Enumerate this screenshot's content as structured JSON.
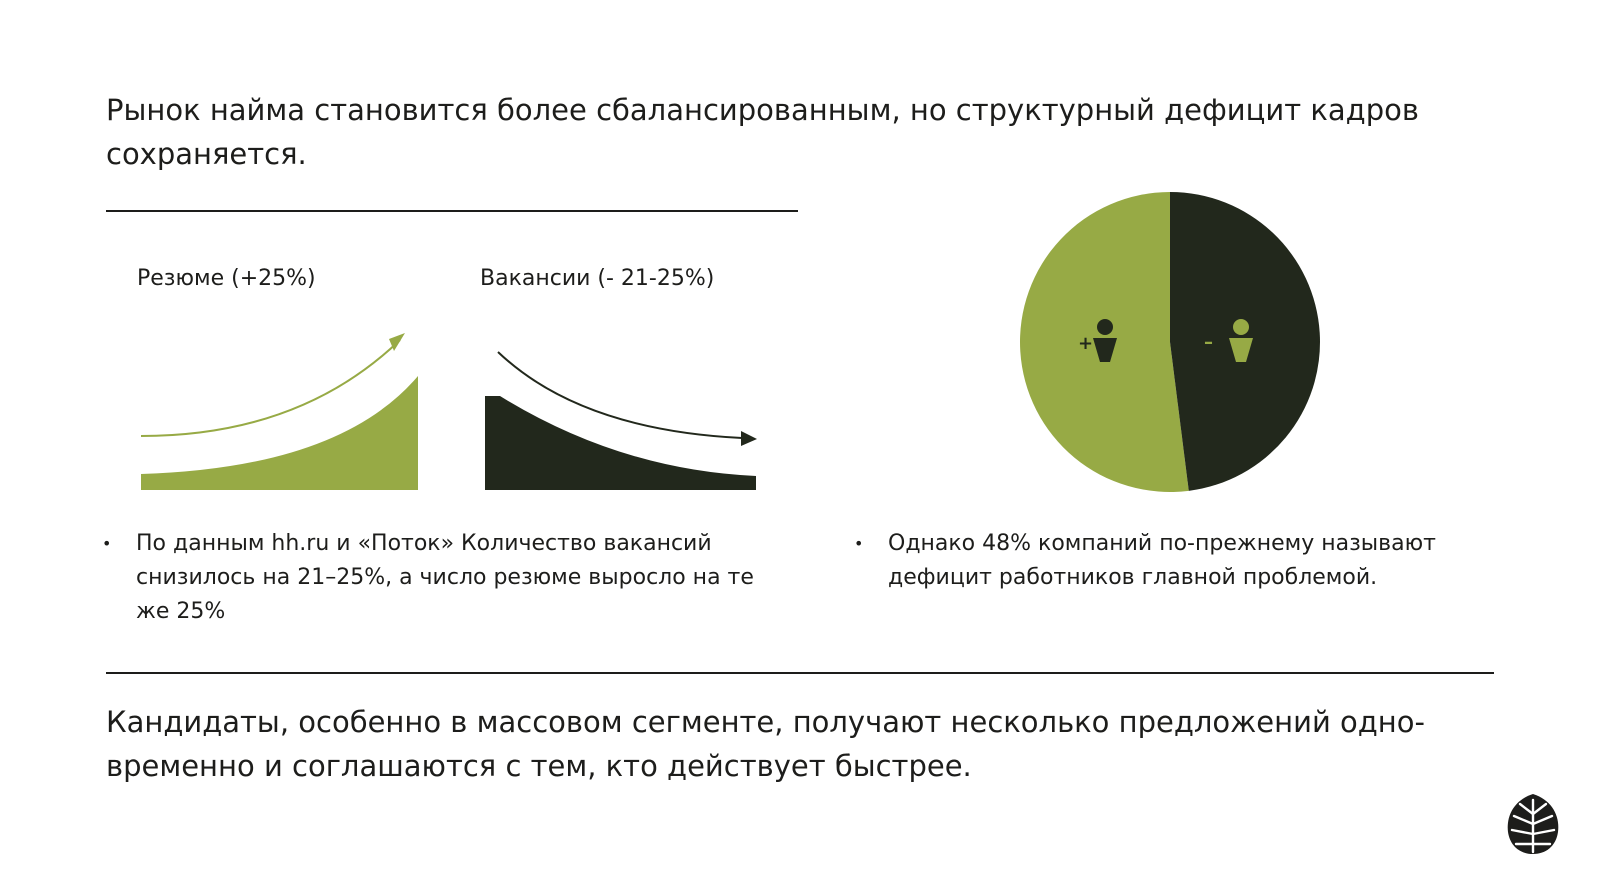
{
  "headline": "Рынок найма становится более сбалансированным, но структурный дефицит кадров сохраняется.",
  "charts": {
    "resume_label": "Резюме (+25%)",
    "vacancies_label": "Вакансии (- 21-25%)"
  },
  "pie": {
    "plus_sign": "+",
    "minus_sign": "–",
    "slices": [
      {
        "share": 52,
        "color": "#97aa45"
      },
      {
        "share": 48,
        "color": "#22281c"
      }
    ]
  },
  "bullets": {
    "left": "По данным hh.ru и  «Поток» Количество вакансий снизилось на 21–25%, а число резюме выросло на те же 25%",
    "right": "Однако 48% компаний по-прежнему называют дефицит работников главной проблемой.",
    "marker": "•"
  },
  "footer": "Кандидаты, особенно в массовом сегменте, получают несколько предложений одно-временно и соглашаются с тем, кто действует быстрее.",
  "colors": {
    "accent_green": "#97aa45",
    "dark": "#22281c",
    "text": "#1d1d1b"
  },
  "logo": {
    "icon": "tree-leaf-logo-icon"
  }
}
